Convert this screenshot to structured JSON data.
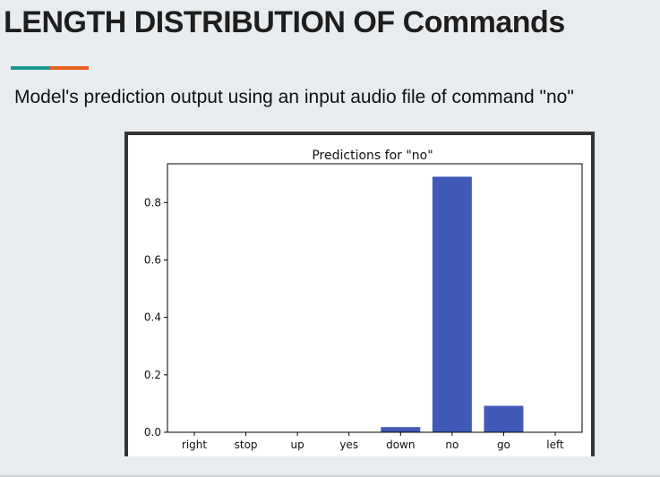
{
  "slide": {
    "title": "LENGTH DISTRIBUTION OF Commands",
    "subtitle": "Model's prediction output using an input audio file of  command \"no\"",
    "accent_colors": [
      "#1b998b",
      "#e8601c"
    ]
  },
  "chart_data": {
    "type": "bar",
    "title": "Predictions for \"no\"",
    "xlabel": "",
    "ylabel": "",
    "categories": [
      "right",
      "stop",
      "up",
      "yes",
      "down",
      "no",
      "go",
      "left"
    ],
    "values": [
      0.0,
      0.0,
      0.0,
      0.0,
      0.018,
      0.89,
      0.092,
      0.0
    ],
    "yticks": [
      "0.0",
      "0.2",
      "0.4",
      "0.6",
      "0.8"
    ],
    "ylim": [
      0,
      0.935
    ],
    "bar_color": "#4159b8",
    "grid": false
  }
}
